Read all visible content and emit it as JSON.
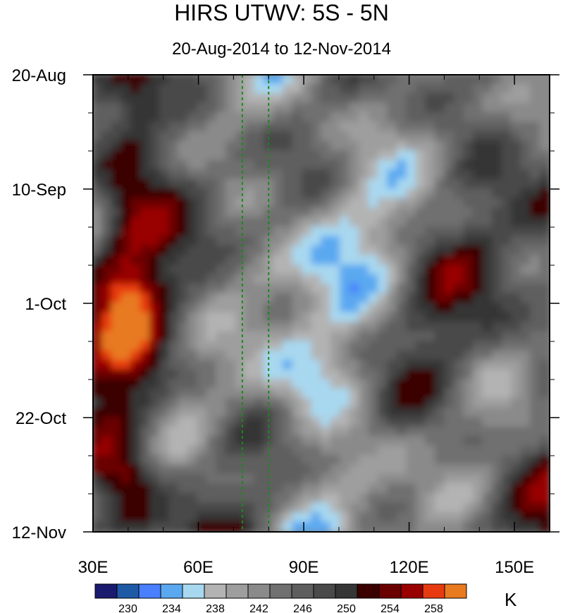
{
  "chart_data": {
    "type": "heatmap",
    "title": "HIRS UTWV: 5S - 5N",
    "subtitle": "20-Aug-2014 to 12-Nov-2014",
    "x_ticks": [
      "30E",
      "60E",
      "90E",
      "120E",
      "150E"
    ],
    "x_tick_values": [
      30,
      60,
      90,
      120,
      150
    ],
    "xlim": [
      30,
      160
    ],
    "y_ticks": [
      "20-Aug",
      "10-Sep",
      "1-Oct",
      "22-Oct",
      "12-Nov"
    ],
    "y_range": [
      "2014-08-20",
      "2014-11-12"
    ],
    "reference_lines_lon": [
      72.5,
      80
    ],
    "colorbar": {
      "unit": "K",
      "labels": [
        "230",
        "234",
        "238",
        "242",
        "246",
        "250",
        "254",
        "258"
      ],
      "level_values": [
        228,
        230,
        232,
        234,
        236,
        238,
        240,
        242,
        244,
        246,
        248,
        250,
        252,
        254,
        256,
        258,
        260
      ],
      "colors": [
        "#1a1a6e",
        "#1f5aa6",
        "#4a7fff",
        "#5aa8f0",
        "#a8d8f0",
        "#b3b3b3",
        "#9e9e9e",
        "#8a8a8a",
        "#707070",
        "#5e5e5e",
        "#4a4a4a",
        "#363636",
        "#3a0000",
        "#6b0000",
        "#990000",
        "#e83a10",
        "#e87a20"
      ]
    }
  }
}
